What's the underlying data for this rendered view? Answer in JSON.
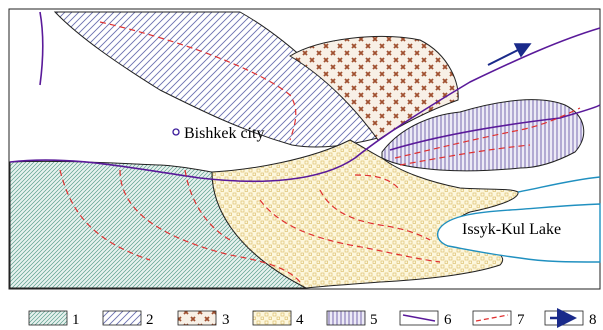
{
  "labels": {
    "city": "Bishkek city",
    "lake": "Issyk-Kul Lake"
  },
  "legend": {
    "items": [
      {
        "key": "1",
        "pattern": "diag-thin"
      },
      {
        "key": "2",
        "pattern": "diag-wide"
      },
      {
        "key": "3",
        "pattern": "crosses"
      },
      {
        "key": "4",
        "pattern": "squares"
      },
      {
        "key": "5",
        "pattern": "vertical"
      },
      {
        "key": "6",
        "pattern": "line-solid"
      },
      {
        "key": "7",
        "pattern": "line-dashed"
      },
      {
        "key": "8",
        "pattern": "arrow"
      }
    ]
  },
  "colors": {
    "zone1": "#5a9e8c",
    "zone1_bg": "#e8f2ef",
    "zone2": "#6a70b0",
    "zone3": "#a05030",
    "zone3_bg": "#f8f0e6",
    "zone4": "#d8b860",
    "zone4_bg": "#fdf7dd",
    "zone5": "#6a5aa8",
    "zone5_bg": "#eceaf6",
    "fault_solid": "#5a1a9a",
    "fault_dashed": "#e03030",
    "lake_shore": "#2090c0",
    "arrow": "#1a2a8a"
  }
}
